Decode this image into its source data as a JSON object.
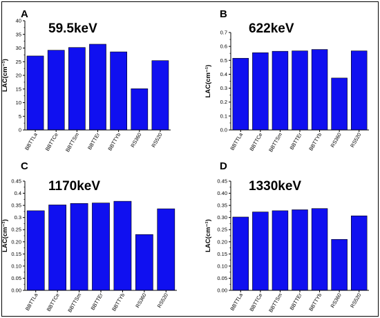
{
  "colors": {
    "bar": "#1010f0",
    "bar_stroke": "#000000",
    "axis": "#000000",
    "frame": "#000000"
  },
  "chart_data": [
    {
      "type": "bar",
      "panel": "A",
      "annotation": "59.5keV",
      "ylabel": "LAC(cm⁻¹)",
      "categories": [
        "BBTTLa",
        "BBTTCe",
        "BBTTSm",
        "BBTTEr",
        "BBTTYb",
        "RS360",
        "RS520"
      ],
      "values": [
        27.1,
        29.2,
        30.2,
        31.4,
        28.6,
        15.1,
        25.4
      ],
      "ylim": [
        0,
        40
      ],
      "yticks": [
        "0",
        "5",
        "10",
        "15",
        "20",
        "25",
        "30",
        "35",
        "40"
      ],
      "grid": false
    },
    {
      "type": "bar",
      "panel": "B",
      "annotation": "622keV",
      "ylabel": "LAC(cm⁻¹)",
      "categories": [
        "BBTTLa",
        "BBTTCe",
        "BBTTSm",
        "BBTTEr",
        "BBTTYb",
        "RS360",
        "RS520"
      ],
      "values": [
        0.515,
        0.555,
        0.565,
        0.568,
        0.578,
        0.373,
        0.568
      ],
      "ylim": [
        0,
        0.7
      ],
      "yticks": [
        "0.0",
        "0.1",
        "0.2",
        "0.3",
        "0.4",
        "0.5",
        "0.6",
        "0.7"
      ],
      "grid": false
    },
    {
      "type": "bar",
      "panel": "C",
      "annotation": "1170keV",
      "ylabel": "LAC(cm⁻¹)",
      "categories": [
        "BBTTLa",
        "BBTTCe",
        "BBTTSm",
        "BBTTEr",
        "BBTTYb",
        "RS360",
        "RS520"
      ],
      "values": [
        0.328,
        0.352,
        0.358,
        0.36,
        0.367,
        0.23,
        0.336
      ],
      "ylim": [
        0,
        0.45
      ],
      "yticks": [
        "0.00",
        "0.05",
        "0.10",
        "0.15",
        "0.20",
        "0.25",
        "0.3",
        "0.35",
        "0.4",
        "0.45"
      ],
      "grid": false
    },
    {
      "type": "bar",
      "panel": "D",
      "annotation": "1330keV",
      "ylabel": "LAC(cm⁻¹)",
      "categories": [
        "BBTTLa",
        "BBTTCe",
        "BBTTSm",
        "BBTTEr",
        "BBTTYb",
        "RS360",
        "RS520"
      ],
      "values": [
        0.302,
        0.323,
        0.328,
        0.332,
        0.337,
        0.21,
        0.307
      ],
      "ylim": [
        0,
        0.45
      ],
      "yticks": [
        "0.00",
        "0.05",
        "0.10",
        "0.15",
        "0.20",
        "0.25",
        "0.30",
        "0.35",
        "0.40",
        "0.45"
      ],
      "grid": false
    }
  ]
}
